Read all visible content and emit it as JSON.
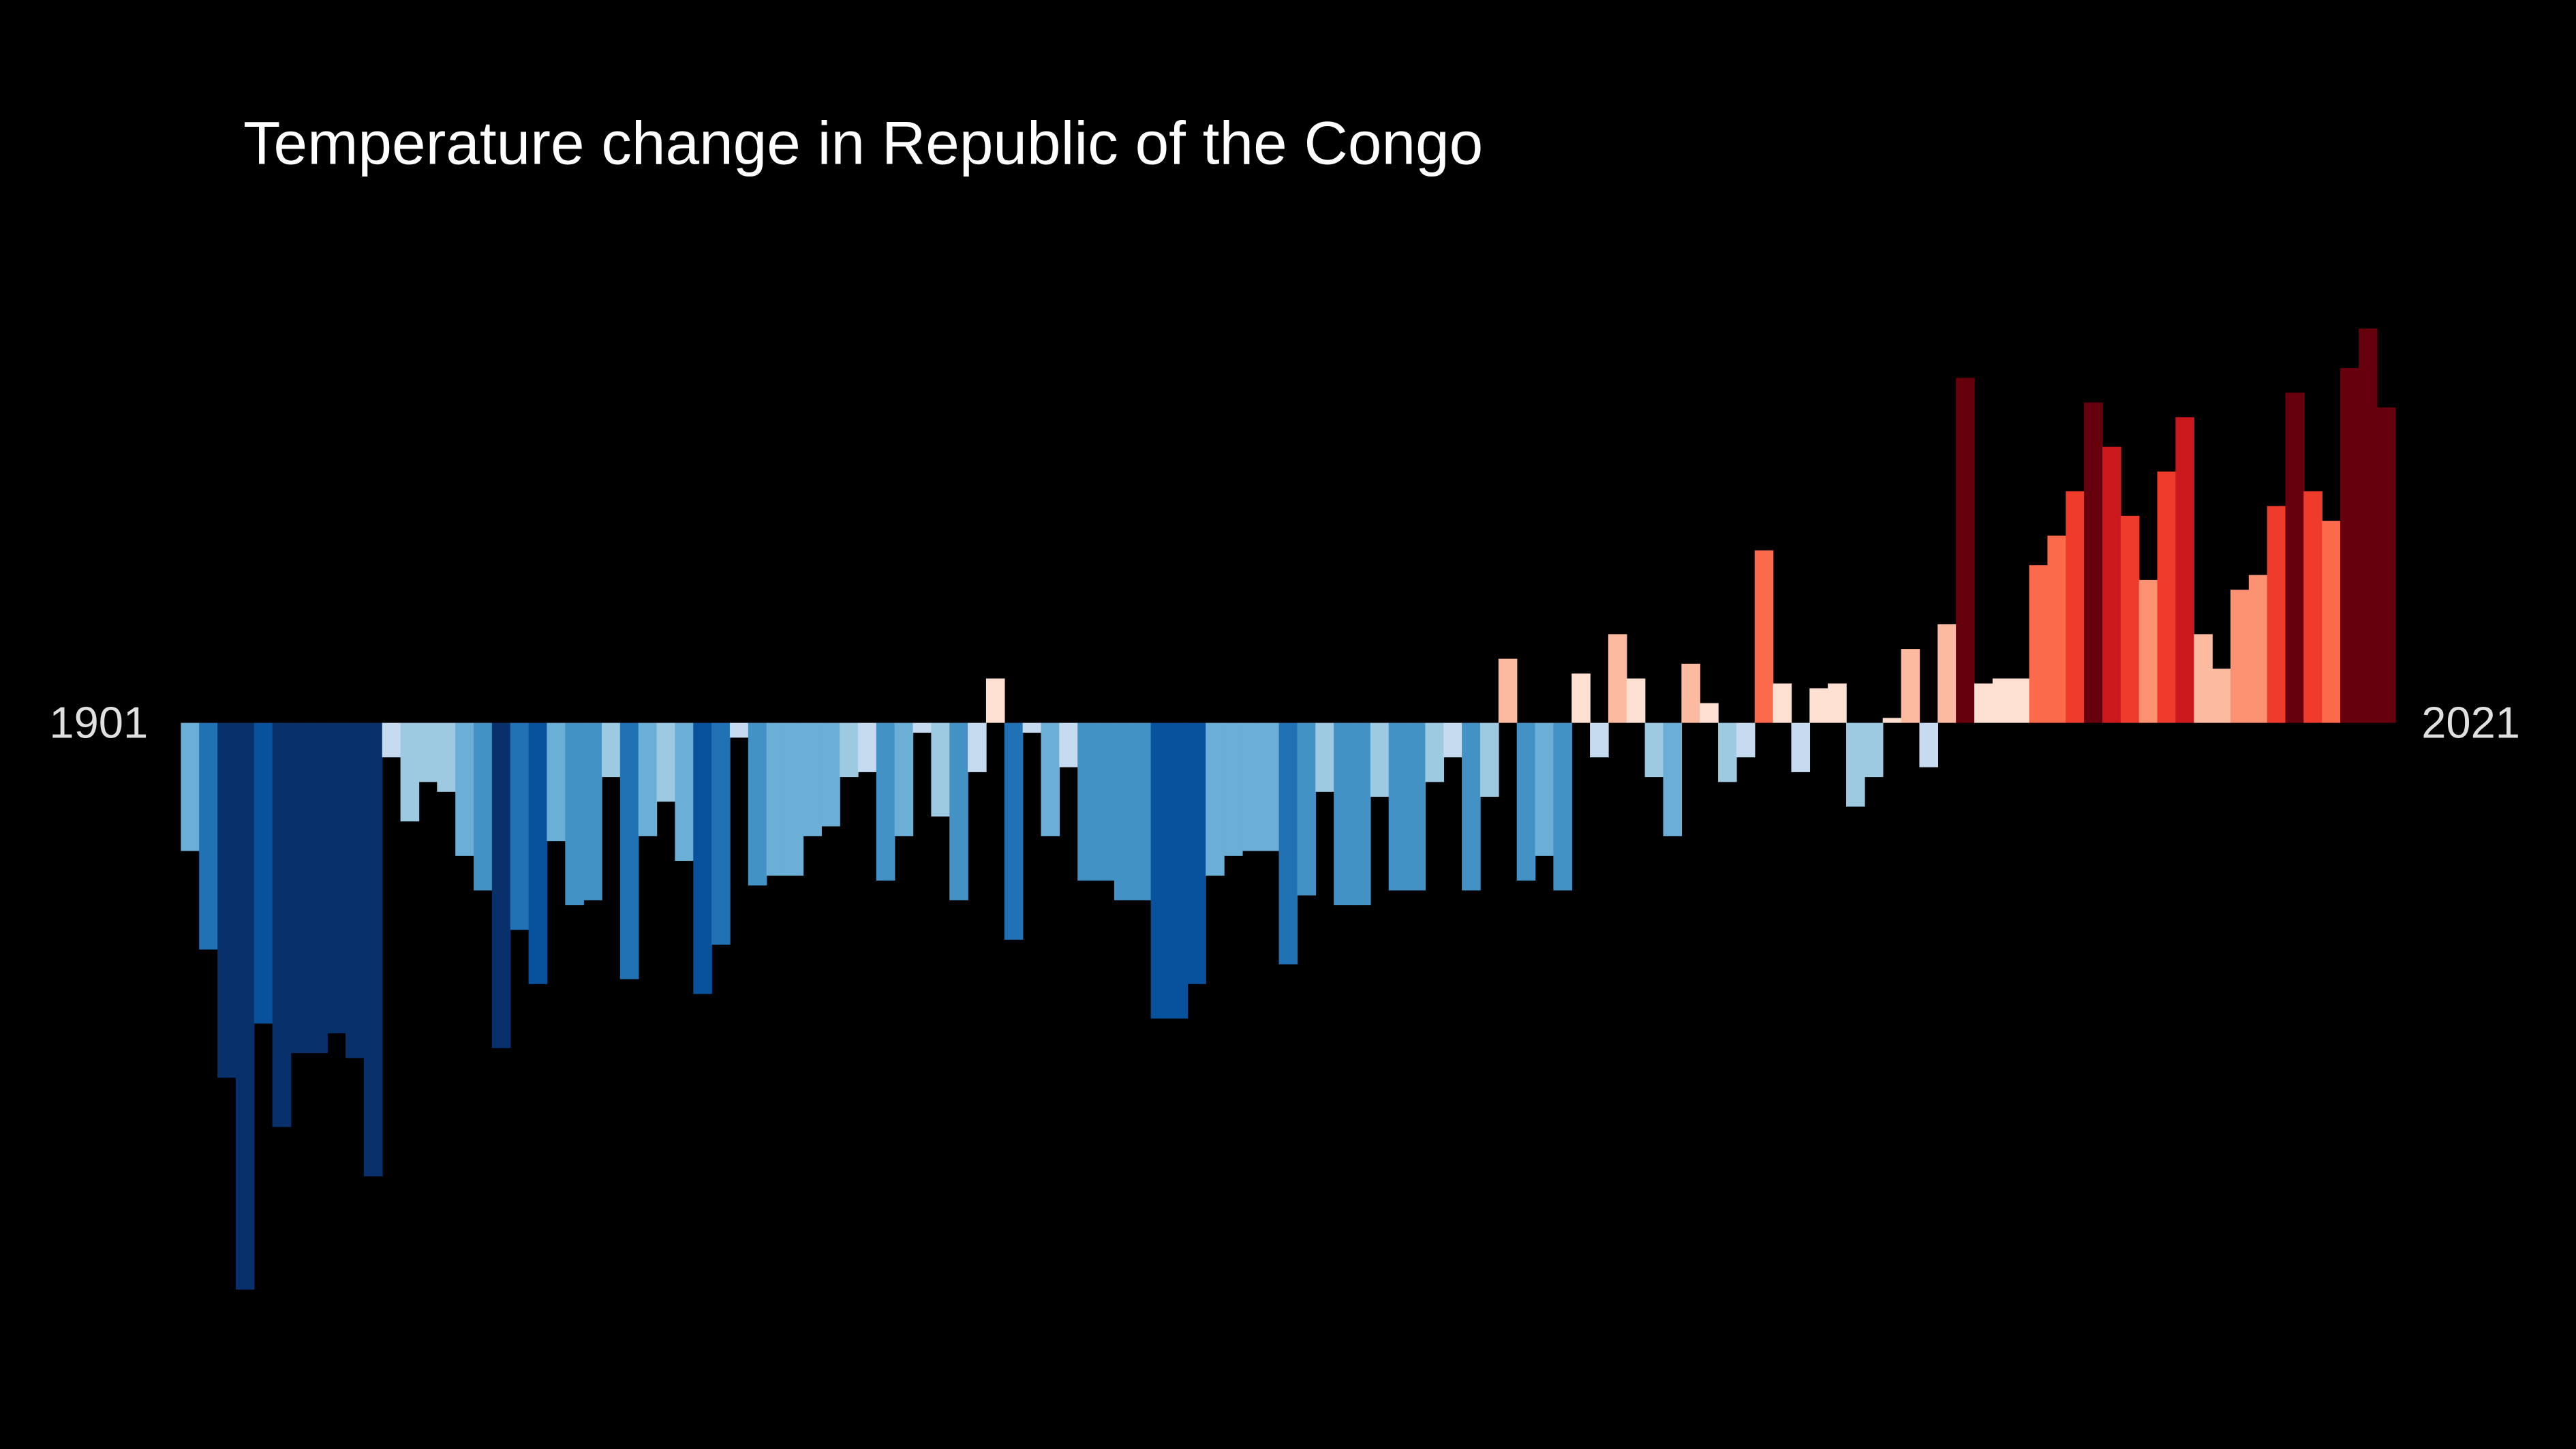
{
  "chart_data": {
    "type": "bar",
    "title": "Temperature change in Republic of the Congo",
    "categories": [
      "1901",
      null,
      null,
      null,
      null,
      null,
      null,
      null,
      null,
      null,
      null,
      null,
      null,
      null,
      null,
      null,
      null,
      null,
      null,
      null,
      null,
      null,
      null,
      null,
      null,
      null,
      null,
      null,
      null,
      null,
      null,
      null,
      null,
      null,
      null,
      null,
      null,
      null,
      null,
      null,
      null,
      null,
      null,
      null,
      null,
      null,
      null,
      null,
      null,
      null,
      null,
      null,
      null,
      null,
      null,
      null,
      null,
      null,
      null,
      null,
      null,
      null,
      null,
      null,
      null,
      null,
      null,
      null,
      null,
      null,
      null,
      null,
      null,
      null,
      null,
      null,
      null,
      null,
      null,
      null,
      null,
      null,
      null,
      null,
      null,
      null,
      null,
      null,
      null,
      null,
      null,
      null,
      null,
      null,
      null,
      null,
      null,
      null,
      null,
      null,
      null,
      null,
      null,
      null,
      null,
      null,
      null,
      null,
      null,
      null,
      null,
      null,
      null,
      null,
      null,
      null,
      null,
      null,
      null,
      null,
      "2021"
    ],
    "values": [
      -0.26,
      -0.46,
      -0.72,
      -1.15,
      -0.61,
      -0.82,
      -0.67,
      -0.67,
      -0.63,
      -0.68,
      -0.92,
      -0.07,
      -0.2,
      -0.12,
      -0.14,
      -0.27,
      -0.34,
      -0.66,
      -0.42,
      -0.53,
      -0.24,
      -0.37,
      -0.36,
      -0.11,
      -0.52,
      -0.23,
      -0.16,
      -0.28,
      -0.55,
      -0.45,
      -0.03,
      -0.33,
      -0.31,
      -0.31,
      -0.23,
      -0.21,
      -0.11,
      -0.1,
      -0.32,
      -0.23,
      -0.02,
      -0.19,
      -0.36,
      -0.1,
      0.09,
      -0.44,
      -0.02,
      -0.23,
      -0.09,
      -0.32,
      -0.32,
      -0.36,
      -0.36,
      -0.6,
      -0.6,
      -0.53,
      -0.31,
      -0.27,
      -0.26,
      -0.26,
      -0.49,
      -0.35,
      -0.14,
      -0.37,
      -0.37,
      -0.15,
      -0.34,
      -0.34,
      -0.12,
      -0.07,
      -0.34,
      -0.15,
      0.13,
      -0.32,
      -0.27,
      -0.34,
      0.1,
      -0.07,
      0.18,
      0.09,
      -0.11,
      -0.23,
      0.12,
      0.04,
      -0.12,
      -0.07,
      0.35,
      0.08,
      -0.1,
      0.07,
      0.08,
      -0.17,
      -0.11,
      0.01,
      0.15,
      -0.09,
      0.2,
      0.7,
      0.08,
      0.09,
      0.09,
      0.32,
      0.38,
      0.47,
      0.65,
      0.56,
      0.42,
      0.29,
      0.51,
      0.62,
      0.18,
      0.11,
      0.27,
      0.3,
      0.44,
      0.67,
      0.47,
      0.41,
      0.72,
      0.8,
      0.64
    ],
    "ylim": [
      -1.2,
      0.9
    ],
    "clim": [
      -0.73,
      0.73
    ],
    "colormap": [
      "#08306b",
      "#08519c",
      "#2171b5",
      "#4292c6",
      "#6baed6",
      "#9ecae1",
      "#c6dbef",
      "#fee0d2",
      "#fcbba1",
      "#fc9272",
      "#fb6a4a",
      "#ef3b2c",
      "#cb181d",
      "#67000d"
    ]
  }
}
